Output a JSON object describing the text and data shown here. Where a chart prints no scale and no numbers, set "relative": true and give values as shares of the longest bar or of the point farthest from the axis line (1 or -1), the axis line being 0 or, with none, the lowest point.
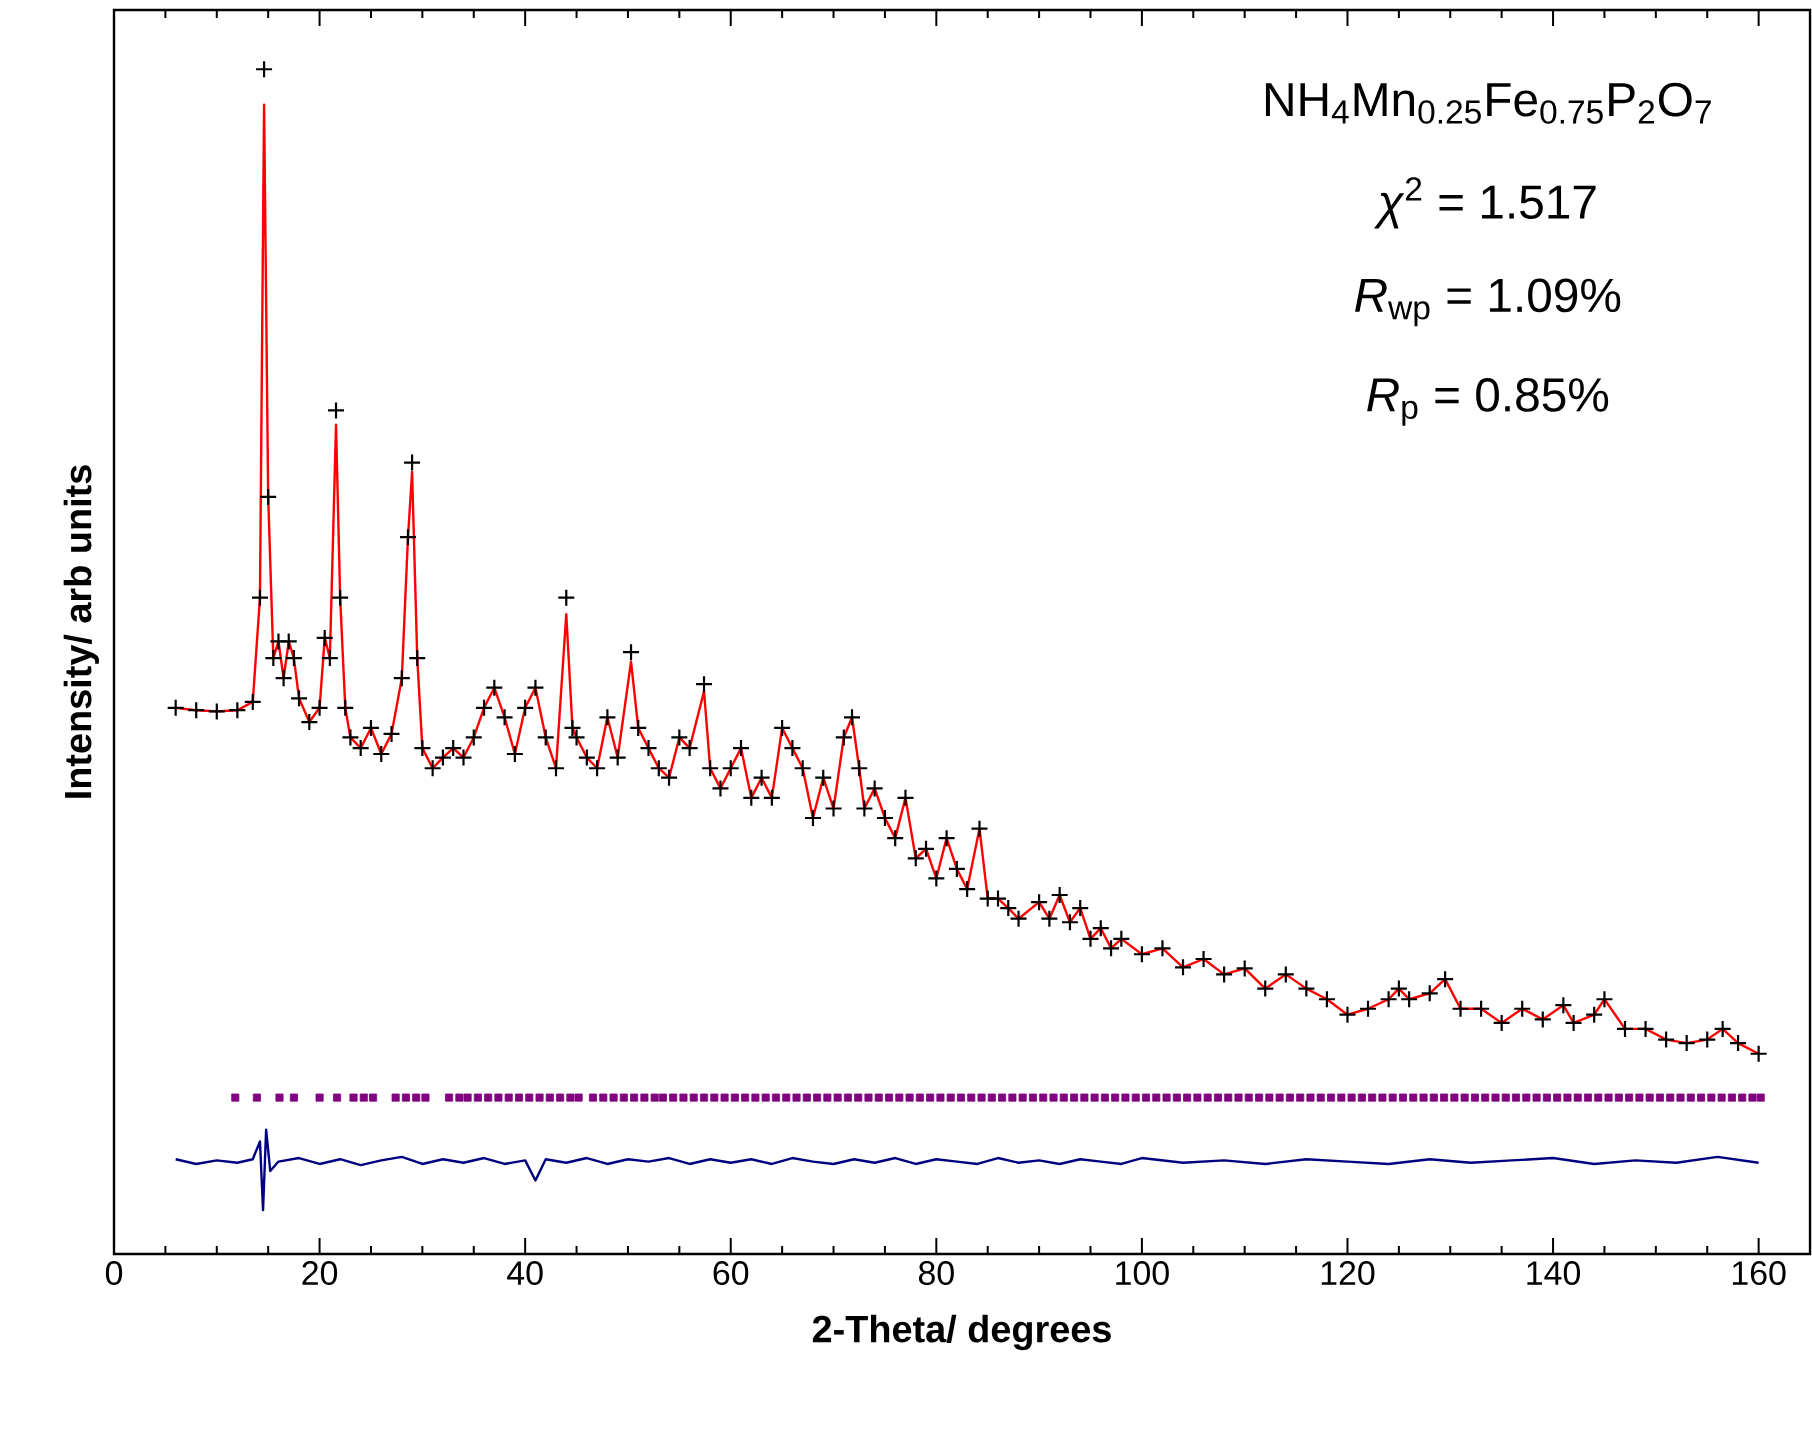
{
  "chart_data": {
    "type": "line",
    "relative": true,
    "xlabel": "2-Theta/ degrees",
    "ylabel": "Intensity/ arb units",
    "xlim": [
      0,
      165
    ],
    "xticks": [
      0,
      20,
      40,
      60,
      80,
      100,
      120,
      140,
      160
    ],
    "annotations": [
      "NH$_{4}$Mn$_{0.25}$Fe$_{0.75}$P$_{2}$O$_{7}$",
      "*χ*$^{2}$ = 1.517",
      "*R*$_{wp}$ = 1.09%",
      "*R*$_{p}$ = 0.85%"
    ],
    "series": [
      {
        "type": "scatter",
        "marker": "cross",
        "color": "#000000",
        "x": [
          6,
          8,
          10,
          12,
          13.5,
          14.2,
          14.6,
          15.0,
          15.5,
          16,
          16.5,
          17,
          17.5,
          18,
          19,
          20,
          20.5,
          21,
          21.6,
          22,
          22.5,
          23,
          24,
          25,
          26,
          27,
          28,
          28.6,
          29,
          29.5,
          30,
          31,
          32,
          33,
          34,
          35,
          36,
          37,
          38,
          39,
          40,
          41,
          42,
          43,
          44,
          44.6,
          45,
          46,
          47,
          48,
          49,
          50.3,
          51,
          52,
          53,
          54,
          55,
          56,
          57.4,
          58,
          59,
          60,
          61,
          62,
          63,
          64,
          65,
          66,
          67,
          68,
          69,
          70,
          71,
          71.8,
          72.5,
          73,
          74,
          75,
          76,
          77,
          78,
          79,
          80,
          81,
          82,
          83,
          84.2,
          85,
          86,
          87,
          88,
          90,
          91,
          92,
          93,
          94,
          95,
          96,
          97,
          98,
          100,
          102,
          104,
          106,
          108,
          110,
          112,
          114,
          116,
          118,
          120,
          122,
          124,
          125,
          126,
          128,
          129.5,
          131,
          133,
          135,
          137,
          139,
          141,
          142,
          144,
          145,
          147,
          149,
          151,
          153,
          155,
          156.5,
          158,
          160
        ],
        "values": [
          0.461,
          0.459,
          0.458,
          0.459,
          0.466,
          0.554,
          1.0,
          0.639,
          0.503,
          0.517,
          0.486,
          0.517,
          0.503,
          0.469,
          0.449,
          0.461,
          0.52,
          0.503,
          0.712,
          0.554,
          0.461,
          0.436,
          0.427,
          0.444,
          0.422,
          0.439,
          0.486,
          0.605,
          0.668,
          0.503,
          0.427,
          0.41,
          0.419,
          0.427,
          0.419,
          0.436,
          0.461,
          0.478,
          0.453,
          0.422,
          0.461,
          0.478,
          0.436,
          0.41,
          0.554,
          0.444,
          0.436,
          0.419,
          0.41,
          0.453,
          0.419,
          0.508,
          0.444,
          0.427,
          0.41,
          0.402,
          0.436,
          0.427,
          0.481,
          0.41,
          0.393,
          0.41,
          0.427,
          0.385,
          0.402,
          0.385,
          0.444,
          0.427,
          0.41,
          0.368,
          0.402,
          0.376,
          0.436,
          0.453,
          0.41,
          0.376,
          0.393,
          0.368,
          0.351,
          0.385,
          0.334,
          0.342,
          0.317,
          0.351,
          0.325,
          0.308,
          0.359,
          0.3,
          0.3,
          0.292,
          0.283,
          0.297,
          0.283,
          0.303,
          0.28,
          0.292,
          0.266,
          0.275,
          0.258,
          0.266,
          0.253,
          0.258,
          0.242,
          0.249,
          0.236,
          0.241,
          0.224,
          0.236,
          0.224,
          0.215,
          0.202,
          0.207,
          0.215,
          0.224,
          0.215,
          0.22,
          0.232,
          0.207,
          0.207,
          0.195,
          0.207,
          0.198,
          0.21,
          0.195,
          0.202,
          0.215,
          0.19,
          0.19,
          0.181,
          0.178,
          0.181,
          0.19,
          0.178,
          0.169
        ]
      },
      {
        "marker": "none",
        "color": "#ff0000",
        "x": [
          6,
          8,
          10,
          12,
          13.5,
          14.2,
          14.6,
          15.0,
          15.5,
          16,
          16.5,
          17,
          17.5,
          18,
          19,
          20,
          20.5,
          21,
          21.6,
          22,
          22.5,
          23,
          24,
          25,
          26,
          27,
          28,
          28.6,
          29,
          29.5,
          30,
          31,
          32,
          33,
          34,
          35,
          36,
          37,
          38,
          39,
          40,
          41,
          42,
          43,
          44,
          44.6,
          45,
          46,
          47,
          48,
          49,
          50.3,
          51,
          52,
          53,
          54,
          55,
          56,
          57.4,
          58,
          59,
          60,
          61,
          62,
          63,
          64,
          65,
          66,
          67,
          68,
          69,
          70,
          71,
          71.8,
          72.5,
          73,
          74,
          75,
          76,
          77,
          78,
          79,
          80,
          81,
          82,
          83,
          84.2,
          85,
          86,
          87,
          88,
          90,
          91,
          92,
          93,
          94,
          95,
          96,
          97,
          98,
          100,
          102,
          104,
          106,
          108,
          110,
          112,
          114,
          116,
          118,
          120,
          122,
          124,
          125,
          126,
          128,
          129.5,
          131,
          133,
          135,
          137,
          139,
          141,
          142,
          144,
          145,
          147,
          149,
          151,
          153,
          155,
          156.5,
          158,
          160
        ],
        "values": [
          0.461,
          0.459,
          0.458,
          0.459,
          0.466,
          0.554,
          0.97,
          0.639,
          0.503,
          0.517,
          0.486,
          0.517,
          0.503,
          0.469,
          0.449,
          0.461,
          0.52,
          0.503,
          0.7,
          0.554,
          0.461,
          0.436,
          0.427,
          0.444,
          0.422,
          0.439,
          0.486,
          0.605,
          0.66,
          0.503,
          0.427,
          0.41,
          0.419,
          0.427,
          0.419,
          0.436,
          0.461,
          0.478,
          0.453,
          0.422,
          0.461,
          0.478,
          0.436,
          0.41,
          0.54,
          0.444,
          0.436,
          0.419,
          0.41,
          0.453,
          0.419,
          0.5,
          0.444,
          0.427,
          0.41,
          0.402,
          0.436,
          0.427,
          0.475,
          0.41,
          0.393,
          0.41,
          0.427,
          0.385,
          0.402,
          0.385,
          0.444,
          0.427,
          0.41,
          0.368,
          0.402,
          0.376,
          0.436,
          0.453,
          0.41,
          0.376,
          0.393,
          0.368,
          0.351,
          0.385,
          0.334,
          0.342,
          0.317,
          0.351,
          0.325,
          0.308,
          0.359,
          0.3,
          0.3,
          0.292,
          0.283,
          0.297,
          0.283,
          0.303,
          0.28,
          0.292,
          0.266,
          0.275,
          0.258,
          0.266,
          0.253,
          0.258,
          0.242,
          0.249,
          0.236,
          0.241,
          0.224,
          0.236,
          0.224,
          0.215,
          0.202,
          0.207,
          0.215,
          0.224,
          0.215,
          0.22,
          0.232,
          0.207,
          0.207,
          0.195,
          0.207,
          0.198,
          0.21,
          0.195,
          0.202,
          0.215,
          0.19,
          0.19,
          0.181,
          0.178,
          0.181,
          0.19,
          0.178,
          0.169
        ]
      },
      {
        "marker": "none",
        "color": "#000080",
        "x": [
          6,
          8,
          10,
          12,
          13.5,
          14.2,
          14.5,
          14.8,
          15.2,
          16,
          18,
          20,
          22,
          24,
          26,
          28,
          30,
          32,
          34,
          36,
          38,
          40,
          41,
          42,
          44,
          46,
          48,
          50,
          52,
          54,
          56,
          58,
          60,
          62,
          64,
          66,
          68,
          70,
          72,
          74,
          76,
          78,
          80,
          82,
          84,
          86,
          88,
          90,
          92,
          94,
          96,
          98,
          100,
          104,
          108,
          112,
          116,
          120,
          124,
          128,
          132,
          136,
          140,
          144,
          148,
          152,
          156,
          160
        ],
        "values": [
          0.08,
          0.076,
          0.079,
          0.077,
          0.08,
          0.095,
          0.037,
          0.105,
          0.07,
          0.078,
          0.081,
          0.076,
          0.08,
          0.075,
          0.079,
          0.082,
          0.076,
          0.08,
          0.077,
          0.081,
          0.076,
          0.079,
          0.062,
          0.08,
          0.077,
          0.081,
          0.076,
          0.08,
          0.078,
          0.081,
          0.076,
          0.08,
          0.077,
          0.08,
          0.076,
          0.081,
          0.078,
          0.076,
          0.08,
          0.077,
          0.081,
          0.076,
          0.08,
          0.078,
          0.076,
          0.081,
          0.077,
          0.079,
          0.076,
          0.08,
          0.078,
          0.076,
          0.081,
          0.077,
          0.079,
          0.076,
          0.08,
          0.078,
          0.076,
          0.08,
          0.077,
          0.079,
          0.081,
          0.076,
          0.079,
          0.077,
          0.082,
          0.077
        ]
      },
      {
        "type": "scatter",
        "marker": "square",
        "color": "#800080",
        "x": [
          11.8,
          13.9,
          16.1,
          17.5,
          20,
          21.7,
          23.3,
          24.3,
          25.2,
          27.4,
          28.4,
          29.4,
          30.3,
          32.6,
          33.6,
          34.4,
          35.4,
          36.4,
          37.4,
          38.4,
          39.4,
          40.4,
          41.4,
          42.4,
          43.4,
          44.4,
          45.2,
          46.6,
          47.6,
          48.6,
          49.6,
          50.6,
          51.6,
          52.6,
          53.4,
          54.4,
          55.4,
          56.4,
          57.4,
          58.4,
          59.4,
          60.4,
          61.4,
          62.4,
          63.4,
          64.4,
          65.4,
          66.4,
          67.4,
          68.4,
          69.4,
          70.4,
          71.4,
          72.4,
          73.4,
          74.4,
          75.4,
          76.4,
          77.4,
          78.4,
          79.4,
          80.4,
          81.4,
          82.4,
          83.4,
          84.4,
          85.4,
          86.4,
          87.4,
          88.4,
          89.4,
          90.4,
          91.4,
          92.4,
          93.4,
          94.4,
          95.4,
          96.4,
          97.4,
          98.4,
          99.4,
          100.4,
          101.4,
          102.4,
          103.4,
          104.4,
          105.4,
          106.4,
          107.4,
          108.4,
          109.4,
          110.4,
          111.4,
          112.4,
          113.4,
          114.4,
          115.4,
          116.4,
          117.4,
          118.4,
          119.4,
          120.4,
          121.4,
          122.4,
          123.4,
          124.4,
          125.4,
          126.4,
          127.4,
          128.4,
          129.4,
          130.4,
          131.4,
          132.4,
          133.4,
          134.4,
          135.4,
          136.4,
          137.4,
          138.4,
          139.4,
          140.4,
          141.4,
          142.4,
          143.4,
          144.4,
          145.4,
          146.4,
          147.4,
          148.4,
          149.4,
          150.4,
          151.4,
          152.4,
          153.4,
          154.4,
          155.4,
          156.4,
          157.4,
          158.4,
          159.4,
          160.2
        ],
        "values": [
          0.132,
          0.132,
          0.132,
          0.132,
          0.132,
          0.132,
          0.132,
          0.132,
          0.132,
          0.132,
          0.132,
          0.132,
          0.132,
          0.132,
          0.132,
          0.132,
          0.132,
          0.132,
          0.132,
          0.132,
          0.132,
          0.132,
          0.132,
          0.132,
          0.132,
          0.132,
          0.132,
          0.132,
          0.132,
          0.132,
          0.132,
          0.132,
          0.132,
          0.132,
          0.132,
          0.132,
          0.132,
          0.132,
          0.132,
          0.132,
          0.132,
          0.132,
          0.132,
          0.132,
          0.132,
          0.132,
          0.132,
          0.132,
          0.132,
          0.132,
          0.132,
          0.132,
          0.132,
          0.132,
          0.132,
          0.132,
          0.132,
          0.132,
          0.132,
          0.132,
          0.132,
          0.132,
          0.132,
          0.132,
          0.132,
          0.132,
          0.132,
          0.132,
          0.132,
          0.132,
          0.132,
          0.132,
          0.132,
          0.132,
          0.132,
          0.132,
          0.132,
          0.132,
          0.132,
          0.132,
          0.132,
          0.132,
          0.132,
          0.132,
          0.132,
          0.132,
          0.132,
          0.132,
          0.132,
          0.132,
          0.132,
          0.132,
          0.132,
          0.132,
          0.132,
          0.132,
          0.132,
          0.132,
          0.132,
          0.132,
          0.132,
          0.132,
          0.132,
          0.132,
          0.132,
          0.132,
          0.132,
          0.132,
          0.132,
          0.132,
          0.132,
          0.132,
          0.132,
          0.132,
          0.132,
          0.132,
          0.132,
          0.132,
          0.132,
          0.132,
          0.132,
          0.132,
          0.132,
          0.132,
          0.132,
          0.132,
          0.132,
          0.132,
          0.132,
          0.132,
          0.132,
          0.132,
          0.132,
          0.132,
          0.132,
          0.132,
          0.132,
          0.132,
          0.132,
          0.132,
          0.132,
          0.132
        ]
      }
    ]
  }
}
